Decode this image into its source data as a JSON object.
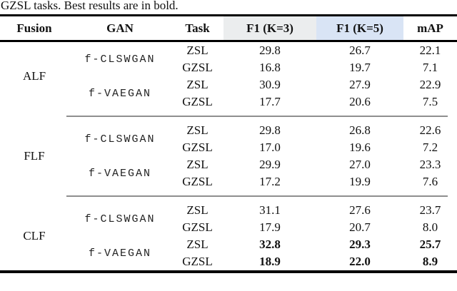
{
  "caption": "GZSL tasks. Best results are in bold.",
  "columns": {
    "fusion": "Fusion",
    "gan": "GAN",
    "task": "Task",
    "f1k3": "F1 (K=3)",
    "f1k5": "F1 (K=5)",
    "map": "mAP"
  },
  "colors": {
    "f1k3_header_bg": "#ebedee",
    "f1k5_header_bg": "#d9e4f5",
    "rule_color": "#000000",
    "midrule_color": "#8e8e8e"
  },
  "groups": [
    {
      "fusion": "ALF",
      "gans": [
        {
          "name": "f-CLSWGAN",
          "rows": [
            {
              "task": "ZSL",
              "f1k3": "29.8",
              "f1k5": "26.7",
              "map": "22.1",
              "bold": false
            },
            {
              "task": "GZSL",
              "f1k3": "16.8",
              "f1k5": "19.7",
              "map": "7.1",
              "bold": false
            }
          ]
        },
        {
          "name": "f-VAEGAN",
          "rows": [
            {
              "task": "ZSL",
              "f1k3": "30.9",
              "f1k5": "27.9",
              "map": "22.9",
              "bold": false
            },
            {
              "task": "GZSL",
              "f1k3": "17.7",
              "f1k5": "20.6",
              "map": "7.5",
              "bold": false
            }
          ]
        }
      ]
    },
    {
      "fusion": "FLF",
      "gans": [
        {
          "name": "f-CLSWGAN",
          "rows": [
            {
              "task": "ZSL",
              "f1k3": "29.8",
              "f1k5": "26.8",
              "map": "22.6",
              "bold": false
            },
            {
              "task": "GZSL",
              "f1k3": "17.0",
              "f1k5": "19.6",
              "map": "7.2",
              "bold": false
            }
          ]
        },
        {
          "name": "f-VAEGAN",
          "rows": [
            {
              "task": "ZSL",
              "f1k3": "29.9",
              "f1k5": "27.0",
              "map": "23.3",
              "bold": false
            },
            {
              "task": "GZSL",
              "f1k3": "17.2",
              "f1k5": "19.9",
              "map": "7.6",
              "bold": false
            }
          ]
        }
      ]
    },
    {
      "fusion": "CLF",
      "gans": [
        {
          "name": "f-CLSWGAN",
          "rows": [
            {
              "task": "ZSL",
              "f1k3": "31.1",
              "f1k5": "27.6",
              "map": "23.7",
              "bold": false
            },
            {
              "task": "GZSL",
              "f1k3": "17.9",
              "f1k5": "20.7",
              "map": "8.0",
              "bold": false
            }
          ]
        },
        {
          "name": "f-VAEGAN",
          "rows": [
            {
              "task": "ZSL",
              "f1k3": "32.8",
              "f1k5": "29.3",
              "map": "25.7",
              "bold": true
            },
            {
              "task": "GZSL",
              "f1k3": "18.9",
              "f1k5": "22.0",
              "map": "8.9",
              "bold": true
            }
          ]
        }
      ]
    }
  ]
}
